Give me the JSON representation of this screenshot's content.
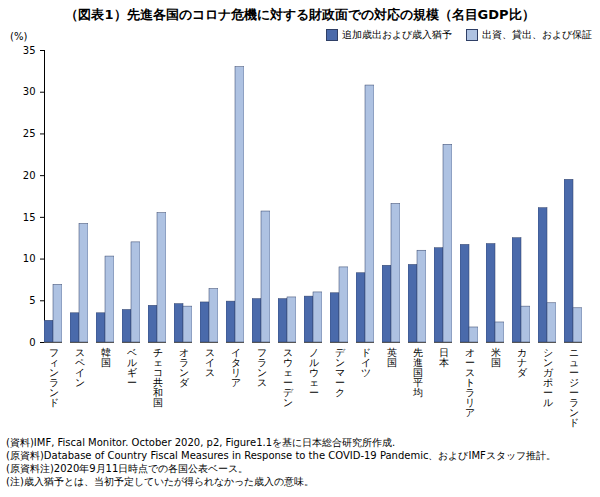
{
  "chart_data": {
    "type": "bar",
    "title": "（図表1）先進各国のコロナ危機に対する財政面での対応の規模（名目GDP比）",
    "y_label": "(%)",
    "categories": [
      "フィンランド",
      "スペイン",
      "韓国",
      "ベルギー",
      "チェコ共和国",
      "オランダ",
      "スイス",
      "イタリア",
      "フランス",
      "スウェーデン",
      "ノルウェー",
      "デンマーク",
      "ドイツ",
      "英国",
      "先進国平均",
      "日本",
      "オーストラリア",
      "米国",
      "カナダ",
      "シンガポール",
      "ニュージーランド"
    ],
    "series": [
      {
        "name": "追加歳出および歳入猶予",
        "color": "#4a6aab",
        "values": [
          2.6,
          3.5,
          3.5,
          3.9,
          4.4,
          4.6,
          4.8,
          4.9,
          5.2,
          5.2,
          5.5,
          5.9,
          8.3,
          9.2,
          9.3,
          11.3,
          11.7,
          11.8,
          12.5,
          16.1,
          19.5
        ]
      },
      {
        "name": "出資、貸出、および保証",
        "color": "#aec2e2",
        "values": [
          6.9,
          14.2,
          10.3,
          12.0,
          15.5,
          4.3,
          6.4,
          33.0,
          15.7,
          5.4,
          6.0,
          9.0,
          30.8,
          16.6,
          11.0,
          23.7,
          1.8,
          2.4,
          4.3,
          4.7,
          4.1
        ]
      }
    ],
    "ylim": [
      0,
      35
    ],
    "yticks": [
      0,
      5,
      10,
      15,
      20,
      25,
      30,
      35
    ],
    "grid": false,
    "legend": "top-right",
    "notes": [
      "(資料)IMF, Fiscal Monitor. October 2020, p2, Figure1.1を基に日本総合研究所作成.",
      "(原資料)Database of Country Fiscal Measures in Response to the COVID-19 Pandemic、およびIMFスタッフ推計。",
      "(原資料注)2020年9月11日時点での各国公表ベース。",
      "(注)歳入猶予とは、当初予定していたが得られなかった歳入の意味。"
    ]
  }
}
